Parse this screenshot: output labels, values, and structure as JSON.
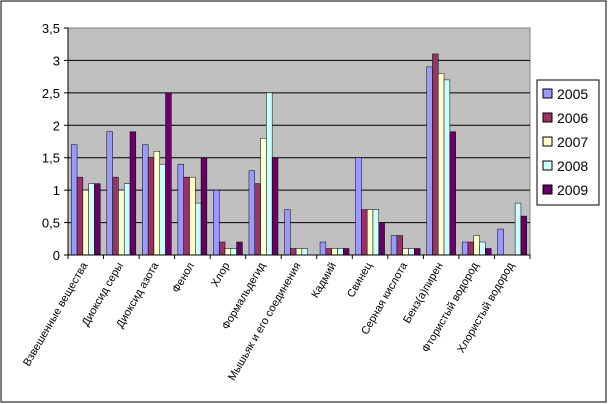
{
  "chart_data": {
    "type": "bar",
    "title": "",
    "xlabel": "",
    "ylabel": "",
    "ylim": [
      0,
      3.5
    ],
    "ytick_step": 0.5,
    "yticks": [
      "0",
      "0,5",
      "1",
      "1,5",
      "2",
      "2,5",
      "3",
      "3,5"
    ],
    "grid": true,
    "legend_position": "right",
    "categories": [
      "Взвешенные вещества",
      "Диоксид серы",
      "Диоксид азота",
      "Фенол",
      "Хлор",
      "Формальдегид",
      "Мышьяк и его соединения",
      "Кадмий",
      "Свинец",
      "Серная кислота",
      "Бенз(а)пирен",
      "Фтористый водород",
      "Хлористый водород"
    ],
    "series": [
      {
        "name": "2005",
        "color": "#9999ff",
        "values": [
          1.7,
          1.9,
          1.7,
          1.4,
          1.0,
          1.3,
          0.7,
          0.2,
          1.5,
          0.3,
          2.9,
          0.2,
          0.4
        ]
      },
      {
        "name": "2006",
        "color": "#993366",
        "values": [
          1.2,
          1.2,
          1.5,
          1.2,
          0.2,
          1.1,
          0.1,
          0.1,
          0.7,
          0.3,
          3.1,
          0.2,
          0.0
        ]
      },
      {
        "name": "2007",
        "color": "#ffffcc",
        "values": [
          1.0,
          1.0,
          1.6,
          1.2,
          0.1,
          1.8,
          0.1,
          0.1,
          0.7,
          0.1,
          2.8,
          0.3,
          0.0
        ]
      },
      {
        "name": "2008",
        "color": "#ccffff",
        "values": [
          1.1,
          1.1,
          1.4,
          0.8,
          0.1,
          2.5,
          0.1,
          0.1,
          0.7,
          0.1,
          2.7,
          0.2,
          0.8
        ]
      },
      {
        "name": "2009",
        "color": "#660066",
        "values": [
          1.1,
          1.9,
          2.5,
          1.5,
          0.2,
          1.5,
          0.0,
          0.1,
          0.5,
          0.1,
          1.9,
          0.1,
          0.6
        ]
      }
    ]
  }
}
